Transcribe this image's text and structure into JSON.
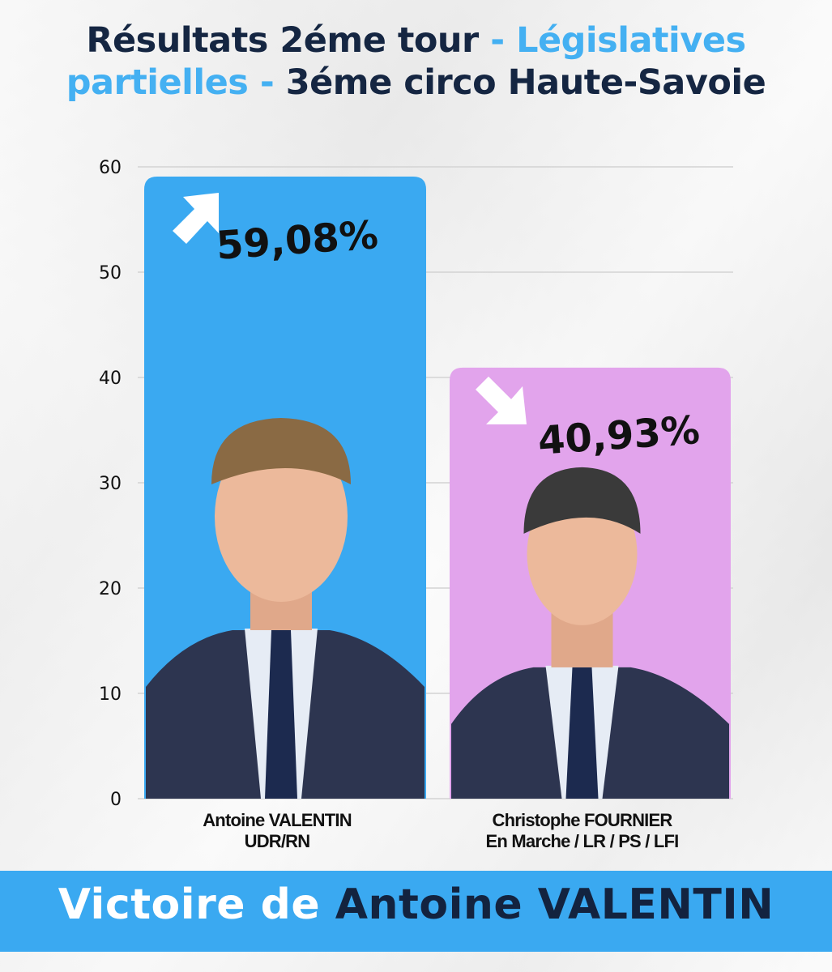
{
  "header": {
    "title_part1": "Résultats 2éme tour",
    "title_sep1": " - ",
    "title_part2": "Législatives",
    "title_part3": "partielles",
    "title_sep2": " - ",
    "title_part4": "3éme circo Haute-Savoie"
  },
  "chart_data": {
    "type": "bar",
    "categories": [
      "Antoine VALENTIN",
      "Christophe FOURNIER"
    ],
    "subcategories": [
      "UDR/RN",
      "En Marche / LR / PS / LFI"
    ],
    "values": [
      59.08,
      40.93
    ],
    "value_labels": [
      "59,08%",
      "40,93%"
    ],
    "trend": [
      "up",
      "down"
    ],
    "colors": [
      "#3aa9f1",
      "#e2a4ec"
    ],
    "ylim": [
      0,
      60
    ],
    "yticks": [
      0,
      10,
      20,
      30,
      40,
      50,
      60
    ],
    "grid": true
  },
  "footer": {
    "text_light": "Victoire de ",
    "text_dark": "Antoine VALENTIN"
  }
}
